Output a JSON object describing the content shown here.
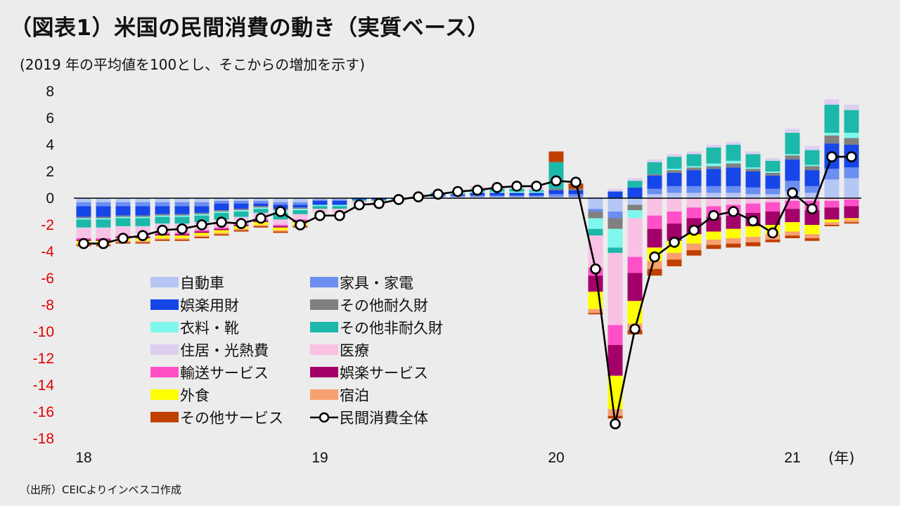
{
  "title": "（図表1）米国の民間消費の動き（実質ベース）",
  "subtitle": "(2019 年の平均値を100とし、そこからの増加を示す)",
  "source": "（出所）CEICよりインベスコ作成",
  "unit_label": "(年)",
  "chart_data": {
    "type": "bar",
    "stacked": true,
    "ylim": [
      -18,
      8
    ],
    "yticks": [
      8,
      6,
      4,
      2,
      0,
      -2,
      -4,
      -6,
      -8,
      -10,
      -12,
      -14,
      -16,
      -18
    ],
    "ytick_colors": {
      "positive": "#111111",
      "negative": "#e00000"
    },
    "xticks": [
      {
        "label": "18",
        "index": 0
      },
      {
        "label": "19",
        "index": 12
      },
      {
        "label": "20",
        "index": 24
      },
      {
        "label": "21",
        "index": 36
      }
    ],
    "legend_position": "lower-left inside plot",
    "series": [
      {
        "name": "自動車",
        "color": "#b4c7f5",
        "values": [
          -0.3,
          -0.3,
          -0.3,
          -0.3,
          -0.3,
          -0.3,
          -0.3,
          -0.2,
          -0.2,
          -0.2,
          -0.3,
          -0.3,
          -0.1,
          -0.1,
          0,
          0,
          0,
          0,
          0.1,
          0.1,
          0.1,
          0.1,
          0.1,
          0.1,
          0.1,
          0.1,
          -0.8,
          -1.0,
          -0.5,
          0.3,
          0.4,
          0.4,
          0.4,
          0.4,
          0.3,
          0.3,
          0.5,
          0.4,
          1.4,
          1.5
        ]
      },
      {
        "name": "家具・家電",
        "color": "#6b8ef0",
        "values": [
          -0.3,
          -0.3,
          -0.3,
          -0.3,
          -0.3,
          -0.3,
          -0.3,
          -0.2,
          -0.2,
          -0.2,
          -0.2,
          -0.2,
          -0.1,
          -0.1,
          0,
          0,
          0,
          0,
          0.1,
          0.1,
          0.1,
          0.1,
          0.1,
          0.1,
          0.2,
          0.2,
          -0.2,
          -0.5,
          0,
          0.4,
          0.5,
          0.5,
          0.5,
          0.5,
          0.5,
          0.4,
          0.8,
          0.5,
          0.8,
          0.8
        ]
      },
      {
        "name": "娯楽用財",
        "color": "#1646e8",
        "values": [
          -0.8,
          -0.8,
          -0.7,
          -0.7,
          -0.6,
          -0.6,
          -0.5,
          -0.5,
          -0.4,
          -0.2,
          -0.3,
          -0.2,
          -0.3,
          -0.3,
          -0.1,
          -0.1,
          -0.1,
          0,
          0.1,
          0.1,
          0.2,
          0.2,
          0.2,
          0.2,
          0.3,
          0.3,
          0,
          0.5,
          0.8,
          1.0,
          1.0,
          1.2,
          1.3,
          1.4,
          1.2,
          1.0,
          1.6,
          1.2,
          1.9,
          1.7
        ]
      },
      {
        "name": "その他耐久財",
        "color": "#808080",
        "values": [
          -0.1,
          -0.1,
          -0.1,
          -0.1,
          -0.1,
          -0.1,
          -0.1,
          -0.1,
          -0.1,
          -0.1,
          -0.1,
          -0.1,
          0,
          0,
          0,
          0,
          0,
          0,
          0,
          0,
          0,
          0,
          0,
          0,
          0.1,
          0.1,
          -0.5,
          -0.8,
          -0.4,
          0.1,
          0.2,
          0.2,
          0.2,
          0.3,
          0.2,
          0.2,
          0.3,
          0.3,
          0.6,
          0.5
        ]
      },
      {
        "name": "衣料・靴",
        "color": "#7ff7ec",
        "values": [
          -0.1,
          -0.1,
          -0.1,
          -0.1,
          -0.1,
          -0.1,
          -0.1,
          -0.1,
          -0.1,
          -0.1,
          -0.2,
          -0.1,
          -0.1,
          -0.1,
          0,
          0,
          0,
          0,
          0,
          0.1,
          0.1,
          0.1,
          0.1,
          0.1,
          0,
          0,
          -0.8,
          -1.4,
          -0.6,
          0,
          0.1,
          0.1,
          0.2,
          0.2,
          0.1,
          0.1,
          0.1,
          0.1,
          0.2,
          0.4
        ]
      },
      {
        "name": "その他非耐久財",
        "color": "#1cb8aa",
        "values": [
          -0.6,
          -0.6,
          -0.6,
          -0.6,
          -0.5,
          -0.5,
          -0.5,
          -0.5,
          -0.4,
          -0.3,
          -0.5,
          -0.3,
          -0.2,
          -0.2,
          -0.1,
          -0.1,
          0,
          0,
          0.1,
          0.1,
          0.2,
          0.2,
          0.2,
          0.1,
          2.0,
          0,
          -0.5,
          -0.4,
          0.5,
          0.9,
          0.9,
          0.9,
          1.2,
          1.2,
          1.0,
          0.8,
          1.6,
          1.1,
          2.1,
          1.7
        ]
      },
      {
        "name": "住居・光熱費",
        "color": "#ddcef0",
        "values": [
          -0.1,
          -0.1,
          -0.1,
          -0.1,
          -0.1,
          -0.1,
          -0.1,
          -0.1,
          -0.1,
          -0.1,
          0,
          0,
          0,
          0,
          0,
          0,
          0,
          0,
          0,
          0,
          0.1,
          0.1,
          0.1,
          0.1,
          0,
          0,
          0.1,
          0.2,
          0.2,
          0.2,
          0.2,
          0.2,
          0.2,
          0.2,
          0.2,
          0.2,
          0.3,
          0.3,
          0.4,
          0.4
        ]
      },
      {
        "name": "医療",
        "color": "#f9c1e3",
        "values": [
          -0.7,
          -0.7,
          -0.6,
          -0.6,
          -0.6,
          -0.6,
          -0.5,
          -0.5,
          -0.4,
          -0.4,
          -0.4,
          -0.4,
          -0.3,
          -0.3,
          -0.2,
          -0.2,
          -0.1,
          0,
          0,
          0,
          0.1,
          0.1,
          0.1,
          0.1,
          0,
          0,
          -2.4,
          -5.4,
          -2.9,
          -1.3,
          -1.0,
          -0.7,
          -0.6,
          -0.5,
          -0.4,
          -0.3,
          -0.2,
          -0.2,
          -0.2,
          -0.1
        ]
      },
      {
        "name": "輸送サービス",
        "color": "#ff50c8",
        "values": [
          -0.1,
          -0.1,
          -0.1,
          -0.1,
          -0.1,
          -0.1,
          -0.1,
          -0.1,
          -0.1,
          -0.1,
          -0.1,
          -0.1,
          0,
          0,
          0,
          0,
          0,
          0,
          0,
          0,
          0,
          0,
          0,
          0,
          0,
          0,
          -0.6,
          -1.5,
          -1.2,
          -1.0,
          -0.9,
          -0.8,
          -0.8,
          -0.8,
          -0.7,
          -0.7,
          -0.6,
          -0.7,
          -0.5,
          -0.5
        ]
      },
      {
        "name": "娯楽サービス",
        "color": "#a3006a",
        "values": [
          -0.1,
          -0.1,
          -0.1,
          -0.1,
          -0.1,
          -0.1,
          -0.1,
          -0.1,
          -0.1,
          -0.1,
          -0.1,
          -0.1,
          0,
          0,
          0,
          0,
          0,
          0,
          0,
          0,
          0,
          0,
          0,
          0,
          0,
          0,
          -1.2,
          -2.3,
          -2.1,
          -1.4,
          -1.3,
          -1.2,
          -1.1,
          -1.0,
          -1.0,
          -1.0,
          -1.0,
          -1.1,
          -0.9,
          -0.9
        ]
      },
      {
        "name": "外食",
        "color": "#ffff00",
        "values": [
          -0.2,
          -0.2,
          -0.2,
          -0.2,
          -0.2,
          -0.2,
          -0.2,
          -0.2,
          -0.2,
          -0.2,
          -0.2,
          -0.2,
          0,
          0,
          0,
          0,
          0,
          0,
          0,
          0,
          0,
          0,
          0,
          0,
          0,
          0,
          -1.3,
          -2.5,
          -1.7,
          -1.0,
          -0.9,
          -0.7,
          -0.6,
          -0.7,
          -0.8,
          -0.7,
          -0.7,
          -0.7,
          -0.2,
          -0.1
        ]
      },
      {
        "name": "宿泊",
        "color": "#f7a070",
        "values": [
          -0.1,
          -0.1,
          -0.1,
          -0.1,
          -0.1,
          -0.1,
          -0.1,
          -0.1,
          -0.1,
          -0.1,
          -0.1,
          -0.1,
          0,
          0,
          0,
          0,
          0,
          0,
          0,
          0,
          0,
          0,
          0,
          0,
          0,
          0,
          -0.3,
          -0.5,
          -0.5,
          -0.6,
          -0.5,
          -0.5,
          -0.4,
          -0.4,
          -0.4,
          -0.4,
          -0.3,
          -0.3,
          -0.2,
          -0.2
        ]
      },
      {
        "name": "その他サービス",
        "color": "#c04000",
        "values": [
          -0.1,
          -0.1,
          -0.1,
          -0.1,
          -0.1,
          -0.1,
          -0.1,
          -0.1,
          -0.1,
          -0.1,
          -0.1,
          -0.1,
          0,
          0,
          0,
          0,
          0,
          0,
          0,
          0,
          0,
          0,
          0,
          0,
          0.8,
          0.4,
          -0.1,
          -0.2,
          -0.3,
          -0.5,
          -0.5,
          -0.4,
          -0.3,
          -0.3,
          -0.3,
          -0.2,
          -0.2,
          -0.2,
          -0.1,
          -0.1
        ]
      }
    ],
    "total": {
      "name": "民間消費全体",
      "values": [
        -3.4,
        -3.4,
        -3.0,
        -2.8,
        -2.4,
        -2.3,
        -2.0,
        -1.8,
        -1.9,
        -1.5,
        -1.0,
        -2.0,
        -1.3,
        -1.3,
        -0.5,
        -0.4,
        -0.1,
        0.1,
        0.3,
        0.5,
        0.6,
        0.8,
        0.9,
        0.9,
        1.3,
        1.2,
        -5.3,
        -16.9,
        -9.8,
        -4.4,
        -3.3,
        -2.4,
        -1.3,
        -1.0,
        -1.7,
        -2.6,
        0.4,
        -0.8,
        3.1,
        3.1
      ]
    }
  }
}
